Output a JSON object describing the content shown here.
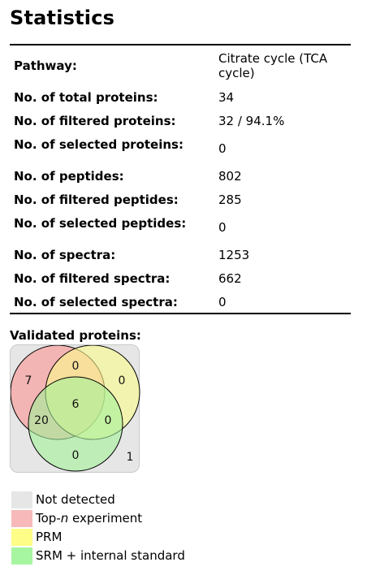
{
  "title": "Statistics",
  "stats": [
    {
      "label": "Pathway:",
      "value": "Citrate cycle (TCA cycle)"
    },
    {
      "label": "No. of total proteins:",
      "value": "34"
    },
    {
      "label": "No. of filtered proteins:",
      "value": "32 / 94.1%"
    },
    {
      "label": "No. of selected proteins:",
      "value": "0"
    },
    {
      "label": "No. of peptides:",
      "value": "802"
    },
    {
      "label": "No. of filtered peptides:",
      "value": "285"
    },
    {
      "label": "No. of selected peptides:",
      "value": "0"
    },
    {
      "label": "No. of spectra:",
      "value": "1253"
    },
    {
      "label": "No. of filtered spectra:",
      "value": "662"
    },
    {
      "label": "No. of selected spectra:",
      "value": "0"
    }
  ],
  "venn": {
    "heading": "Validated proteins:",
    "counts": {
      "topn_only": "7",
      "prm_only": "0",
      "srm_only": "0",
      "topn_prm": "0",
      "topn_srm": "20",
      "prm_srm": "0",
      "all_three": "6",
      "not_detected": "1"
    },
    "colors": {
      "topn": "#f4aaaa",
      "prm": "#fbfb8c",
      "srm": "#a3f29a",
      "not_detected": "#e6e6e6"
    }
  },
  "legend": [
    {
      "label": "Not detected",
      "color": "#e6e6e6"
    },
    {
      "label": "Top-n experiment",
      "color": "#f7b9b9"
    },
    {
      "label": "PRM",
      "color": "#fdfd87"
    },
    {
      "label": "SRM + internal standard",
      "color": "#a6f5a0"
    }
  ]
}
